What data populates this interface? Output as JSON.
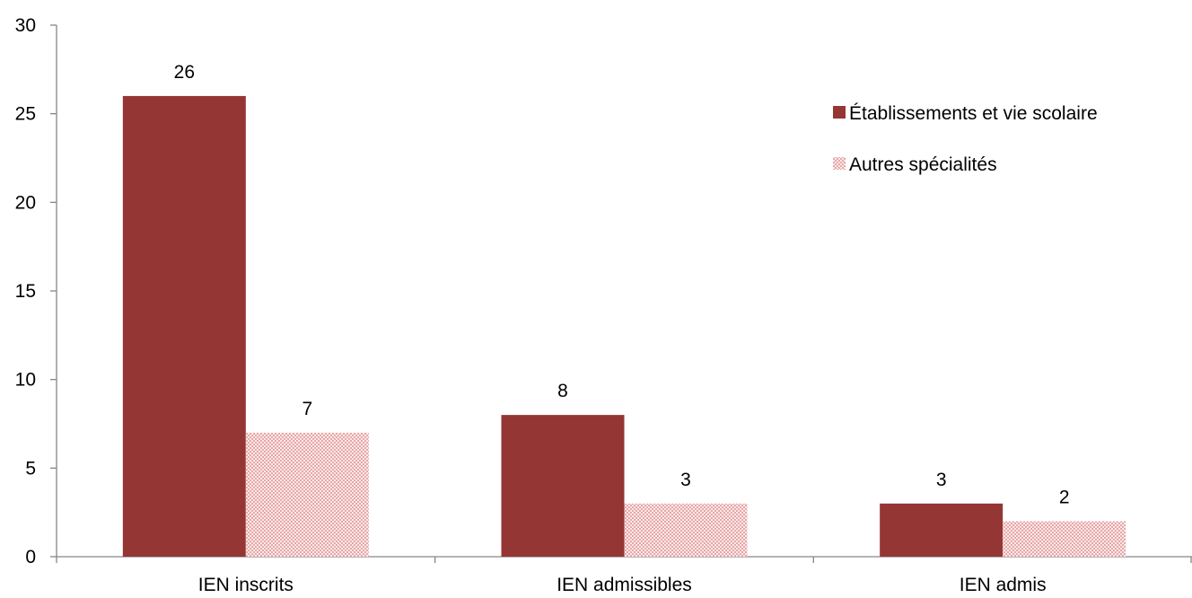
{
  "chart_data": {
    "type": "bar",
    "title": "",
    "xlabel": "",
    "ylabel": "",
    "categories": [
      "IEN inscrits",
      "IEN admissibles",
      "IEN admis"
    ],
    "series": [
      {
        "name": "Établissements et vie scolaire",
        "values": [
          26,
          8,
          3
        ],
        "color": "#943634",
        "pattern": "solid"
      },
      {
        "name": "Autres spécialités",
        "values": [
          7,
          3,
          2
        ],
        "color": "#F2C3C3",
        "pattern": "checkered"
      }
    ],
    "ylim": [
      0,
      30
    ],
    "yticks": [
      0,
      5,
      10,
      15,
      20,
      25,
      30
    ],
    "grid": false,
    "legend_position": "top-right",
    "data_labels": true
  }
}
